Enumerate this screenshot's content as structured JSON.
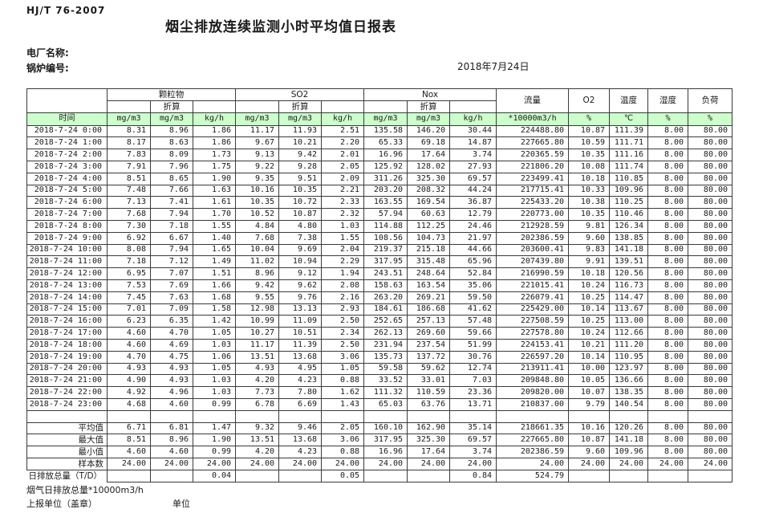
{
  "page": {
    "standard_code": "HJ/T  76-2007",
    "title": "烟尘排放连续监测小时平均值日报表",
    "plant_name_label": "电厂名称:",
    "boiler_no_label": "锅炉编号:",
    "date": "2018年7月24日"
  },
  "table": {
    "time_header": "时间",
    "conversion_label": "折算",
    "groups": [
      {
        "label": "颗粒物"
      },
      {
        "label": "SO2"
      },
      {
        "label": "Nox"
      }
    ],
    "single_columns": [
      {
        "label": "流量",
        "unit": "*10000m3/h"
      },
      {
        "label": "O2",
        "unit": "%"
      },
      {
        "label": "温度",
        "unit": "℃"
      },
      {
        "label": "湿度",
        "unit": "%"
      },
      {
        "label": "负荷",
        "unit": "%"
      }
    ],
    "units": [
      "mg/m3",
      "mg/m3",
      "kg/h",
      "mg/m3",
      "mg/m3",
      "kg/h",
      "mg/m3",
      "mg/m3",
      "kg/h",
      "*10000m3/h",
      "%",
      "℃",
      "%",
      "%"
    ],
    "rows": [
      {
        "time": "2018-7-24 0:00",
        "values": [
          "8.31",
          "8.96",
          "1.86",
          "11.17",
          "11.93",
          "2.51",
          "135.58",
          "146.20",
          "30.44",
          "224488.80",
          "10.87",
          "111.39",
          "8.00",
          "80.00"
        ]
      },
      {
        "time": "2018-7-24 1:00",
        "values": [
          "8.17",
          "8.63",
          "1.86",
          "9.67",
          "10.21",
          "2.20",
          "65.33",
          "69.18",
          "14.87",
          "227665.80",
          "10.59",
          "111.71",
          "8.00",
          "80.00"
        ]
      },
      {
        "time": "2018-7-24 2:00",
        "values": [
          "7.83",
          "8.09",
          "1.73",
          "9.13",
          "9.42",
          "2.01",
          "16.96",
          "17.64",
          "3.74",
          "220365.59",
          "10.35",
          "111.16",
          "8.00",
          "80.00"
        ]
      },
      {
        "time": "2018-7-24 3:00",
        "values": [
          "7.91",
          "7.96",
          "1.75",
          "9.22",
          "9.28",
          "2.05",
          "125.92",
          "128.02",
          "27.93",
          "221806.20",
          "10.08",
          "111.74",
          "8.00",
          "80.00"
        ]
      },
      {
        "time": "2018-7-24 4:00",
        "values": [
          "8.51",
          "8.65",
          "1.90",
          "9.35",
          "9.51",
          "2.09",
          "311.26",
          "325.30",
          "69.57",
          "223499.41",
          "10.18",
          "110.85",
          "8.00",
          "80.00"
        ]
      },
      {
        "time": "2018-7-24 5:00",
        "values": [
          "7.48",
          "7.66",
          "1.63",
          "10.16",
          "10.35",
          "2.21",
          "203.20",
          "208.32",
          "44.24",
          "217715.41",
          "10.33",
          "109.96",
          "8.00",
          "80.00"
        ]
      },
      {
        "time": "2018-7-24 6:00",
        "values": [
          "7.13",
          "7.41",
          "1.61",
          "10.35",
          "10.72",
          "2.33",
          "163.55",
          "169.54",
          "36.87",
          "225433.20",
          "10.38",
          "110.25",
          "8.00",
          "80.00"
        ]
      },
      {
        "time": "2018-7-24 7:00",
        "values": [
          "7.68",
          "7.94",
          "1.70",
          "10.52",
          "10.87",
          "2.32",
          "57.94",
          "60.63",
          "12.79",
          "220773.00",
          "10.35",
          "110.46",
          "8.00",
          "80.00"
        ]
      },
      {
        "time": "2018-7-24 8:00",
        "values": [
          "7.30",
          "7.18",
          "1.55",
          "4.84",
          "4.80",
          "1.03",
          "114.88",
          "112.25",
          "24.46",
          "212928.59",
          "9.81",
          "126.34",
          "8.00",
          "80.00"
        ]
      },
      {
        "time": "2018-7-24 9:00",
        "values": [
          "6.92",
          "6.67",
          "1.40",
          "7.68",
          "7.38",
          "1.55",
          "108.56",
          "104.73",
          "21.97",
          "202386.59",
          "9.60",
          "138.85",
          "8.00",
          "80.00"
        ]
      },
      {
        "time": "2018-7-24 10:00",
        "values": [
          "8.08",
          "7.94",
          "1.65",
          "10.04",
          "9.69",
          "2.04",
          "219.37",
          "215.18",
          "44.66",
          "203600.41",
          "9.83",
          "141.18",
          "8.00",
          "80.00"
        ]
      },
      {
        "time": "2018-7-24 11:00",
        "values": [
          "7.18",
          "7.12",
          "1.49",
          "11.02",
          "10.94",
          "2.29",
          "317.95",
          "315.48",
          "65.96",
          "207439.80",
          "9.91",
          "139.51",
          "8.00",
          "80.00"
        ]
      },
      {
        "time": "2018-7-24 12:00",
        "values": [
          "6.95",
          "7.07",
          "1.51",
          "8.96",
          "9.12",
          "1.94",
          "243.51",
          "248.64",
          "52.84",
          "216990.59",
          "10.18",
          "120.56",
          "8.00",
          "80.00"
        ]
      },
      {
        "time": "2018-7-24 13:00",
        "values": [
          "7.53",
          "7.69",
          "1.66",
          "9.42",
          "9.62",
          "2.08",
          "158.63",
          "163.54",
          "35.06",
          "221015.41",
          "10.24",
          "116.73",
          "8.00",
          "80.00"
        ]
      },
      {
        "time": "2018-7-24 14:00",
        "values": [
          "7.45",
          "7.63",
          "1.68",
          "9.55",
          "9.76",
          "2.16",
          "263.20",
          "269.21",
          "59.50",
          "226079.41",
          "10.25",
          "114.47",
          "8.00",
          "80.00"
        ]
      },
      {
        "time": "2018-7-24 15:00",
        "values": [
          "7.01",
          "7.09",
          "1.58",
          "12.98",
          "13.13",
          "2.93",
          "184.61",
          "186.68",
          "41.62",
          "225429.00",
          "10.14",
          "113.67",
          "8.00",
          "80.00"
        ]
      },
      {
        "time": "2018-7-24 16:00",
        "values": [
          "6.23",
          "6.35",
          "1.42",
          "10.99",
          "11.09",
          "2.50",
          "252.65",
          "257.13",
          "57.48",
          "227508.59",
          "10.25",
          "113.00",
          "8.00",
          "80.00"
        ]
      },
      {
        "time": "2018-7-24 17:00",
        "values": [
          "4.60",
          "4.70",
          "1.05",
          "10.27",
          "10.51",
          "2.34",
          "262.13",
          "269.60",
          "59.66",
          "227578.80",
          "10.24",
          "112.66",
          "8.00",
          "80.00"
        ]
      },
      {
        "time": "2018-7-24 18:00",
        "values": [
          "4.60",
          "4.69",
          "1.03",
          "11.17",
          "11.39",
          "2.50",
          "231.94",
          "237.54",
          "51.99",
          "224153.41",
          "10.21",
          "111.20",
          "8.00",
          "80.00"
        ]
      },
      {
        "time": "2018-7-24 19:00",
        "values": [
          "4.70",
          "4.75",
          "1.06",
          "13.51",
          "13.68",
          "3.06",
          "135.73",
          "137.72",
          "30.76",
          "226597.20",
          "10.14",
          "110.95",
          "8.00",
          "80.00"
        ]
      },
      {
        "time": "2018-7-24 20:00",
        "values": [
          "4.93",
          "4.93",
          "1.05",
          "4.93",
          "4.95",
          "1.05",
          "59.58",
          "59.62",
          "12.74",
          "213911.41",
          "10.00",
          "123.97",
          "8.00",
          "80.00"
        ]
      },
      {
        "time": "2018-7-24 21:00",
        "values": [
          "4.90",
          "4.93",
          "1.03",
          "4.20",
          "4.23",
          "0.88",
          "33.52",
          "33.01",
          "7.03",
          "209848.80",
          "10.05",
          "136.66",
          "8.00",
          "80.00"
        ]
      },
      {
        "time": "2018-7-24 22:00",
        "values": [
          "4.92",
          "4.96",
          "1.03",
          "7.73",
          "7.80",
          "1.62",
          "111.32",
          "110.59",
          "23.36",
          "209820.00",
          "10.07",
          "138.35",
          "8.00",
          "80.00"
        ]
      },
      {
        "time": "2018-7-24 23:00",
        "values": [
          "4.68",
          "4.60",
          "0.99",
          "6.78",
          "6.69",
          "1.43",
          "65.03",
          "63.76",
          "13.71",
          "210837.00",
          "9.79",
          "140.54",
          "8.00",
          "80.00"
        ]
      }
    ],
    "summary": [
      {
        "label": "平均值",
        "values": [
          "6.71",
          "6.81",
          "1.47",
          "9.32",
          "9.46",
          "2.05",
          "160.10",
          "162.90",
          "35.14",
          "218661.35",
          "10.16",
          "120.26",
          "8.00",
          "80.00"
        ]
      },
      {
        "label": "最大值",
        "values": [
          "8.51",
          "8.96",
          "1.90",
          "13.51",
          "13.68",
          "3.06",
          "317.95",
          "325.30",
          "69.57",
          "227665.80",
          "10.87",
          "141.18",
          "8.00",
          "80.00"
        ]
      },
      {
        "label": "最小值",
        "values": [
          "4.60",
          "4.60",
          "0.99",
          "4.20",
          "4.23",
          "0.88",
          "16.96",
          "17.64",
          "3.74",
          "202386.59",
          "9.60",
          "109.96",
          "8.00",
          "80.00"
        ]
      },
      {
        "label": "样本数",
        "values": [
          "24.00",
          "24.00",
          "24.00",
          "24.00",
          "24.00",
          "24.00",
          "24.00",
          "24.00",
          "24.00",
          "24.00",
          "24.00",
          "24.00",
          "24.00",
          "24.00"
        ]
      },
      {
        "label": "日排放总量（T/D）",
        "values": [
          "",
          "",
          "0.04",
          "",
          "",
          "0.05",
          "",
          "",
          "0.84",
          "524.79",
          "",
          "",
          "",
          ""
        ]
      }
    ]
  },
  "footer": {
    "flue_gas_total": "烟气日排放总量*10000m3/h",
    "report_unit": "上报单位（盖章）",
    "unit": "单位"
  },
  "colors": {
    "header_green": "#ccffcc",
    "border": "#3a3a3a",
    "text": "#1a1a1a",
    "background": "#ffffff"
  }
}
